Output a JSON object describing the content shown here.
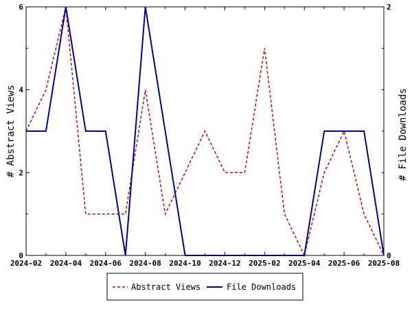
{
  "chart_data": {
    "type": "line",
    "x": [
      "2024-02",
      "2024-03",
      "2024-04",
      "2024-05",
      "2024-06",
      "2024-07",
      "2024-08",
      "2024-09",
      "2024-10",
      "2024-11",
      "2024-12",
      "2025-01",
      "2025-02",
      "2025-03",
      "2025-04",
      "2025-05",
      "2025-06",
      "2025-07",
      "2025-08"
    ],
    "x_tick_labels": [
      "2024-02",
      "2024-04",
      "2024-06",
      "2024-08",
      "2024-10",
      "2024-12",
      "2025-02",
      "2025-04",
      "2025-06",
      "2025-08"
    ],
    "series": [
      {
        "name": "Abstract Views",
        "axis": "left",
        "color": "#cc0000",
        "style": "dashed",
        "values": [
          3,
          4,
          6,
          1,
          1,
          1,
          4,
          1,
          2,
          3,
          2,
          2,
          5,
          1,
          0,
          2,
          3,
          1,
          0
        ]
      },
      {
        "name": "File Downloads",
        "axis": "right",
        "color": "#0000a0",
        "style": "solid",
        "values": [
          1,
          1,
          2,
          1,
          1,
          0,
          2,
          1,
          0,
          0,
          0,
          0,
          0,
          0,
          0,
          1,
          1,
          1,
          0
        ]
      }
    ],
    "ylabel": "# Abstract Views",
    "y2label": "# File Downloads",
    "ylim": [
      0,
      6
    ],
    "y_ticks": [
      0,
      2,
      4,
      6
    ],
    "y2lim": [
      0,
      2
    ],
    "y2_ticks": [
      0,
      2
    ],
    "grid": false,
    "legend_position": "bottom"
  }
}
